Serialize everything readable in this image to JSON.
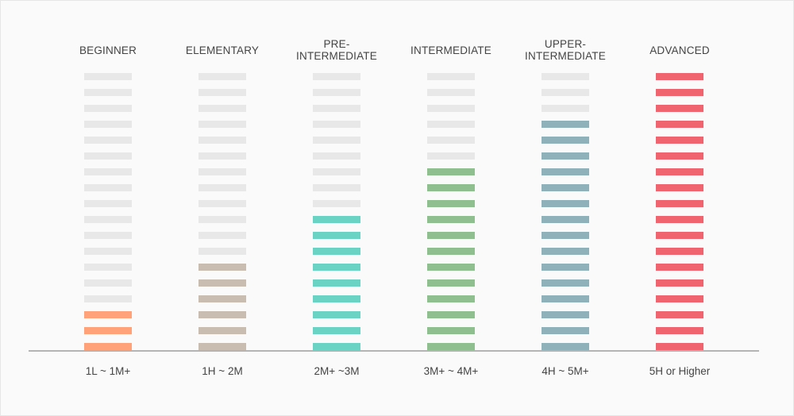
{
  "chart_data": {
    "type": "bar",
    "title": "",
    "xlabel": "",
    "ylabel": "",
    "categories": [
      "BEGINNER",
      "ELEMENTARY",
      "PRE-\nINTERMEDIATE",
      "INTERMEDIATE",
      "UPPER-\nINTERMEDIATE",
      "ADVANCED"
    ],
    "tick_labels": [
      "1L ~ 1M+",
      "1H ~ 2M",
      "2M+ ~3M",
      "3M+ ~ 4M+",
      "4H ~ 5M+",
      "5H or Higher"
    ],
    "values": [
      3,
      6,
      9,
      12,
      15,
      18
    ],
    "total_segments": 18,
    "ylim": [
      0,
      18
    ],
    "grid": false,
    "colors": [
      "#ffa27a",
      "#c9bcb0",
      "#6bd3c4",
      "#8fbf8f",
      "#8fb1ba",
      "#f0646f"
    ],
    "empty_color": "#e8e8e8",
    "axis_color": "#8a8a8a"
  }
}
